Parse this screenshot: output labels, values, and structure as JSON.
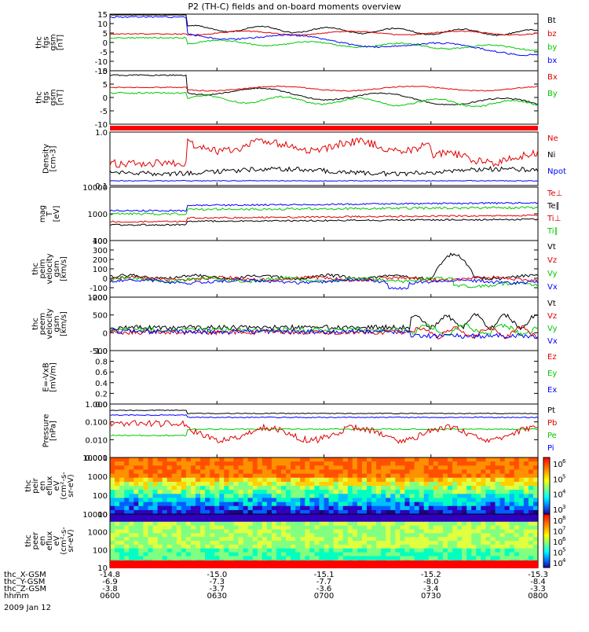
{
  "title": "P2 (TH-C) fields and on-board moments overview",
  "date_label": "2009 Jan 12",
  "colors": {
    "black": "#000000",
    "red": "#e00000",
    "green": "#00c800",
    "blue": "#0000ff",
    "bar": "#ff0000"
  },
  "panels": [
    {
      "ylabel": [
        "thc",
        "fgs",
        "gsm",
        "[nT]"
      ],
      "ticks": [
        "15",
        "10",
        "5",
        "0",
        "-5",
        "-10",
        "-15"
      ],
      "legend": [
        {
          "text": "Bt",
          "color": "black"
        },
        {
          "text": "bz",
          "color": "red"
        },
        {
          "text": "by",
          "color": "green"
        },
        {
          "text": "bx",
          "color": "blue"
        }
      ]
    },
    {
      "ylabel": [
        "thc",
        "fgs",
        "gsm",
        "[nT]"
      ],
      "ticks": [
        "10",
        "5",
        "0",
        "-5",
        "-10"
      ],
      "legend": [
        {
          "text": "Bx",
          "color": "red"
        },
        {
          "text": "By",
          "color": "green"
        }
      ]
    },
    {
      "ylabel": [
        "Density",
        "[cm-3]"
      ],
      "ticks": [
        "1.0",
        "0.1"
      ],
      "legend": [
        {
          "text": "Ne",
          "color": "red"
        },
        {
          "text": "Ni",
          "color": "black"
        },
        {
          "text": "Npot",
          "color": "blue"
        }
      ]
    },
    {
      "ylabel": [
        "mag",
        "T",
        "[eV]"
      ],
      "ticks": [
        "10000",
        "1000",
        "100"
      ],
      "legend": [
        {
          "text": "Te⊥",
          "color": "red"
        },
        {
          "text": "Te∥",
          "color": "black"
        },
        {
          "text": "Ti⊥",
          "color": "red"
        },
        {
          "text": "Ti∥",
          "color": "green"
        }
      ]
    },
    {
      "ylabel": [
        "thc",
        "peim",
        "velocity",
        "gsm",
        "[km/s]"
      ],
      "ticks": [
        "400",
        "300",
        "200",
        "100",
        "0",
        "-100",
        "-200"
      ],
      "legend": [
        {
          "text": "Vt",
          "color": "black"
        },
        {
          "text": "Vz",
          "color": "red"
        },
        {
          "text": "Vy",
          "color": "green"
        },
        {
          "text": "Vx",
          "color": "blue"
        }
      ]
    },
    {
      "ylabel": [
        "thc",
        "peem",
        "velocity",
        "gsm",
        "[km/s]"
      ],
      "ticks": [
        "1000",
        "500",
        "0",
        "-500"
      ],
      "legend": [
        {
          "text": "Vt",
          "color": "black"
        },
        {
          "text": "Vz",
          "color": "red"
        },
        {
          "text": "Vy",
          "color": "green"
        },
        {
          "text": "Vx",
          "color": "blue"
        }
      ]
    },
    {
      "ylabel": [
        "E=-VxB",
        "[mV/m]"
      ],
      "ticks": [
        "1.0",
        "0.8",
        "0.6",
        "0.4",
        "0.2",
        "0.0"
      ],
      "legend": [
        {
          "text": "Ez",
          "color": "red"
        },
        {
          "text": "Ey",
          "color": "green"
        },
        {
          "text": "Ex",
          "color": "blue"
        }
      ]
    },
    {
      "ylabel": [
        "Pressure",
        "[nPa]"
      ],
      "ticks": [
        "1.000",
        "0.100",
        "0.010",
        "0.001"
      ],
      "legend": [
        {
          "text": "Pt",
          "color": "black"
        },
        {
          "text": "Pb",
          "color": "red"
        },
        {
          "text": "Pe",
          "color": "green"
        },
        {
          "text": "Pi",
          "color": "blue"
        }
      ]
    },
    {
      "ylabel": [
        "thc",
        "peir",
        "en",
        "eflux",
        "eV",
        "(cm²-s-",
        "sr-eV)"
      ],
      "ticks": [
        "10000",
        "1000",
        "100",
        "10"
      ],
      "colorbar": [
        "10",
        "10",
        "10",
        "10"
      ],
      "colorbar_exp": [
        "6",
        "5",
        "4",
        "3"
      ]
    },
    {
      "ylabel": [
        "thc",
        "peer",
        "en",
        "eflux",
        "eV",
        "(cm²-s-",
        "sr-eV)"
      ],
      "ticks": [
        "10000",
        "1000",
        "100",
        "10"
      ],
      "colorbar": [
        "10",
        "10",
        "10",
        "10",
        "10"
      ],
      "colorbar_exp": [
        "8",
        "7",
        "6",
        "5",
        "4"
      ]
    }
  ],
  "xaxis": {
    "rows": [
      {
        "label": "thc_X-GSM",
        "values": [
          "-14.8",
          "-15.0",
          "-15.1",
          "-15.2",
          "-15.3"
        ]
      },
      {
        "label": "thc_Y-GSM",
        "values": [
          "-6.9",
          "-7.3",
          "-7.7",
          "-8.0",
          "-8.4"
        ]
      },
      {
        "label": "thc_Z-GSM",
        "values": [
          "-3.8",
          "-3.7",
          "-3.6",
          "-3.4",
          "-3.3"
        ]
      },
      {
        "label": "hhmm",
        "values": [
          "0600",
          "0630",
          "0700",
          "0730",
          "0800"
        ]
      }
    ]
  },
  "chart_data": {
    "type": "line",
    "title": "P2 (TH-C) fields and on-board moments overview",
    "x": [
      "0600",
      "0630",
      "0700",
      "0730",
      "0800"
    ],
    "series": [
      {
        "name": "Bt",
        "values": [
          14.5,
          8,
          6,
          6,
          7
        ]
      },
      {
        "name": "bz",
        "values": [
          4.5,
          5,
          4,
          6,
          6
        ]
      },
      {
        "name": "by",
        "values": [
          2,
          1,
          -1,
          -2,
          0
        ]
      },
      {
        "name": "bx",
        "values": [
          12,
          5,
          -1,
          -4,
          -2
        ]
      },
      {
        "name": "Ne",
        "values": [
          0.5,
          0.45,
          0.45,
          0.35,
          0.2
        ]
      },
      {
        "name": "Ni",
        "values": [
          0.13,
          0.15,
          0.18,
          0.15,
          0.12
        ]
      },
      {
        "name": "Vt",
        "values": [
          30,
          60,
          50,
          80,
          40
        ]
      }
    ]
  }
}
